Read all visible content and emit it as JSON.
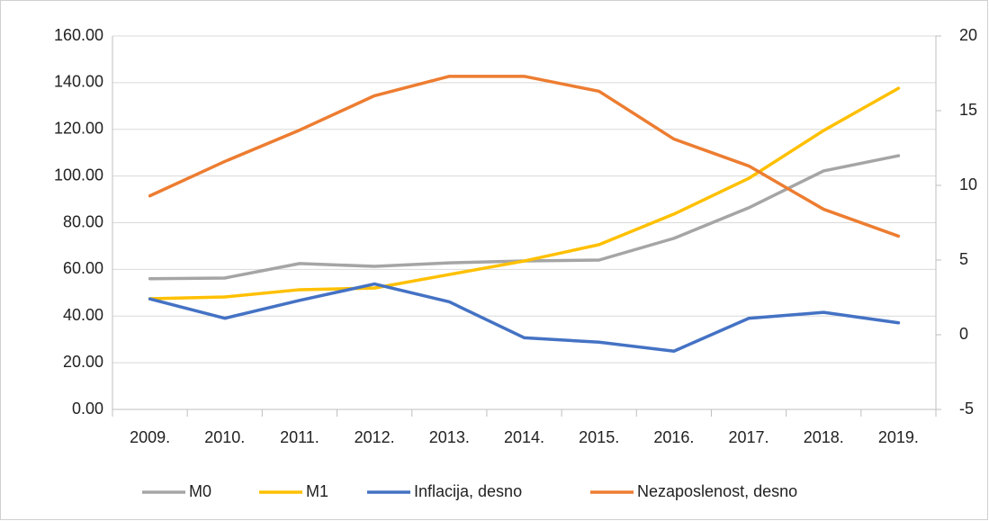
{
  "chart_data": {
    "type": "line",
    "categories": [
      "2009.",
      "2010.",
      "2011.",
      "2012.",
      "2013.",
      "2014.",
      "2015.",
      "2016.",
      "2017.",
      "2018.",
      "2019."
    ],
    "series": [
      {
        "name": "M0",
        "color": "#a5a5a5",
        "values": [
          56,
          56.3,
          62.5,
          61.3,
          62.8,
          63.6,
          64,
          73.3,
          86.4,
          102.2,
          108.7
        ]
      },
      {
        "name": "M1",
        "color": "#ffc000",
        "values": [
          47.4,
          48.2,
          51.3,
          52,
          57.8,
          63.6,
          70.6,
          83.7,
          99,
          119.5,
          137.6
        ]
      },
      {
        "name": "Inflacija, desno",
        "color": "#4472c4",
        "axis": "y2",
        "values": [
          2.4,
          1.1,
          2.3,
          3.4,
          2.2,
          -0.2,
          -0.5,
          -1.1,
          1.1,
          1.5,
          0.8
        ]
      },
      {
        "name": "Nezaposlenost, desno",
        "color": "#ed7d31",
        "axis": "y2",
        "values": [
          9.3,
          11.6,
          13.7,
          16.0,
          17.3,
          17.3,
          16.3,
          13.1,
          11.3,
          8.4,
          6.6
        ]
      }
    ],
    "ylim": [
      0,
      160
    ],
    "yticks": [
      {
        "value": 0,
        "label": "0.00"
      },
      {
        "value": 20,
        "label": "20.00"
      },
      {
        "value": 40,
        "label": "40.00"
      },
      {
        "value": 60,
        "label": "60.00"
      },
      {
        "value": 80,
        "label": "80.00"
      },
      {
        "value": 100,
        "label": "100.00"
      },
      {
        "value": 120,
        "label": "120.00"
      },
      {
        "value": 140,
        "label": "140.00"
      },
      {
        "value": 160,
        "label": "160.00"
      }
    ],
    "y2lim": [
      -5,
      20
    ],
    "y2ticks": [
      -5,
      0,
      5,
      10,
      15,
      20
    ],
    "grid": true,
    "legend": "bottom"
  }
}
